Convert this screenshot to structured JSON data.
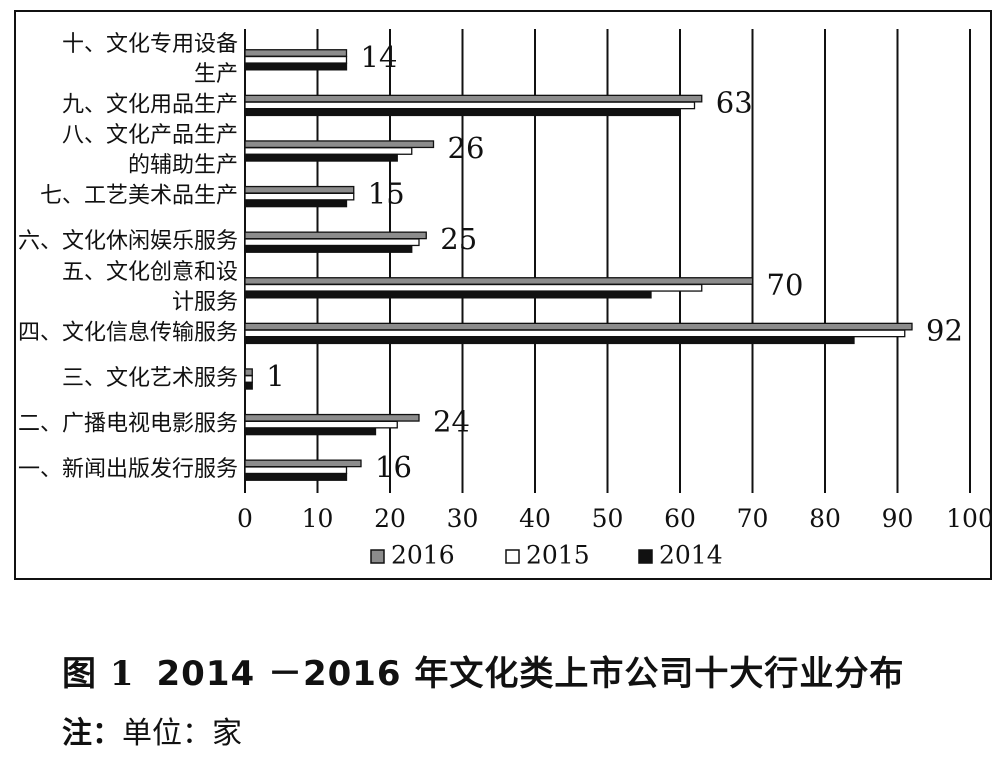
{
  "chart_data": {
    "type": "bar",
    "orientation": "horizontal",
    "categories": [
      "十、文化专用设备生产",
      "九、文化用品生产",
      "八、文化产品生产的辅助生产",
      "七、工艺美术品生产",
      "六、文化休闲娱乐服务",
      "五、文化创意和设计服务",
      "四、文化信息传输服务",
      "三、文化艺术服务",
      "二、广播电视电影服务",
      "一、新闻出版发行服务"
    ],
    "category_lines": [
      [
        "十、文化专用设备",
        "生产"
      ],
      [
        "九、文化用品生产"
      ],
      [
        "八、文化产品生产",
        "的辅助生产"
      ],
      [
        "七、工艺美术品生产"
      ],
      [
        "六、文化休闲娱乐服务"
      ],
      [
        "五、文化创意和设",
        "计服务"
      ],
      [
        "四、文化信息传输服务"
      ],
      [
        "三、文化艺术服务"
      ],
      [
        "二、广播电视电影服务"
      ],
      [
        "一、新闻出版发行服务"
      ]
    ],
    "series": [
      {
        "name": "2016",
        "color": "#8c8c8c",
        "values": [
          14,
          63,
          26,
          15,
          25,
          70,
          92,
          1,
          24,
          16
        ]
      },
      {
        "name": "2015",
        "color": "#ffffff",
        "values": [
          14,
          62,
          23,
          15,
          24,
          63,
          91,
          1,
          21,
          14
        ]
      },
      {
        "name": "2014",
        "color": "#111111",
        "values": [
          14,
          60,
          21,
          14,
          23,
          56,
          84,
          1,
          18,
          14
        ]
      }
    ],
    "data_labels": [
      "14",
      "63",
      "26",
      "15",
      "25",
      "70",
      "92",
      "1",
      "24",
      "16"
    ],
    "xlim": [
      0,
      100
    ],
    "xticks": [
      0,
      10,
      20,
      30,
      40,
      50,
      60,
      70,
      80,
      90,
      100
    ],
    "grid": "vertical",
    "legend": "bottom"
  },
  "caption": {
    "figure_number": "图 1",
    "title": "2014 －2016 年文化类上市公司十大行业分布"
  },
  "note": {
    "label": "注：",
    "text": "单位：家"
  }
}
